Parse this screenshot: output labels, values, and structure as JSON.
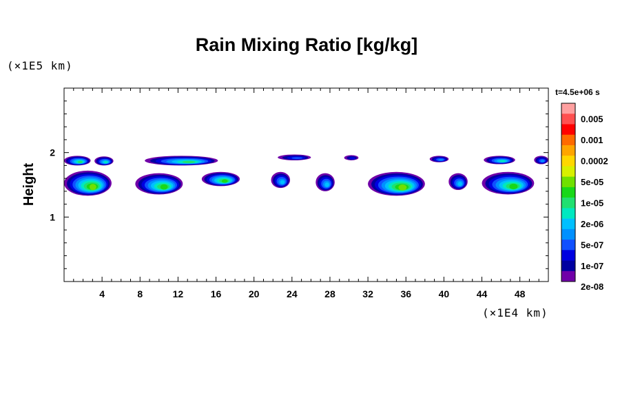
{
  "chart_data": {
    "type": "heatmap",
    "title": "Rain Mixing Ratio [kg/kg]",
    "ylabel": "Height",
    "y_unit": "(×1E5 km)",
    "x_unit": "(×1E4 km)",
    "xlim": [
      0,
      51
    ],
    "ylim": [
      0,
      3
    ],
    "x_ticks": [
      4,
      8,
      12,
      16,
      20,
      24,
      28,
      32,
      36,
      40,
      44,
      48
    ],
    "x_tick_labels": [
      "4",
      "8",
      "12",
      "16",
      "20",
      "24",
      "28",
      "32",
      "36",
      "40",
      "44",
      "48"
    ],
    "y_ticks": [
      1,
      2
    ],
    "y_tick_labels": [
      "1",
      "2"
    ],
    "time_label": "t=4.5e+06 s",
    "colorbar": {
      "labels": [
        "0.005",
        "0.001",
        "0.0002",
        "5e-05",
        "1e-05",
        "2e-06",
        "5e-07",
        "1e-07",
        "2e-08"
      ],
      "colors": [
        "#ffa0a0",
        "#ff5050",
        "#ff0000",
        "#ff6a00",
        "#ffa500",
        "#ffd700",
        "#d8f000",
        "#70e000",
        "#18d818",
        "#20e070",
        "#00e8c0",
        "#00c0ff",
        "#0090ff",
        "#1050ff",
        "#0000e0",
        "#0000a0",
        "#7000a8"
      ]
    },
    "cells": [
      {
        "x": [
          0.0,
          2.8
        ],
        "y": [
          1.8,
          1.95
        ],
        "max_level": 8
      },
      {
        "x": [
          3.2,
          5.2
        ],
        "y": [
          1.8,
          1.94
        ],
        "max_level": 7
      },
      {
        "x": [
          8.5,
          16.2
        ],
        "y": [
          1.8,
          1.95
        ],
        "max_level": 8
      },
      {
        "x": [
          22.5,
          26.0
        ],
        "y": [
          1.88,
          1.97
        ],
        "max_level": 4
      },
      {
        "x": [
          29.5,
          31.0
        ],
        "y": [
          1.88,
          1.96
        ],
        "max_level": 3
      },
      {
        "x": [
          38.5,
          40.5
        ],
        "y": [
          1.85,
          1.95
        ],
        "max_level": 5
      },
      {
        "x": [
          44.2,
          47.5
        ],
        "y": [
          1.82,
          1.95
        ],
        "max_level": 7
      },
      {
        "x": [
          49.5,
          51.0
        ],
        "y": [
          1.82,
          1.95
        ],
        "max_level": 5
      },
      {
        "x": [
          0.0,
          5.0
        ],
        "y": [
          1.33,
          1.72
        ],
        "max_level": 10
      },
      {
        "x": [
          7.5,
          12.5
        ],
        "y": [
          1.35,
          1.68
        ],
        "max_level": 9
      },
      {
        "x": [
          14.5,
          18.5
        ],
        "y": [
          1.48,
          1.7
        ],
        "max_level": 9
      },
      {
        "x": [
          21.8,
          23.8
        ],
        "y": [
          1.45,
          1.7
        ],
        "max_level": 6
      },
      {
        "x": [
          26.5,
          28.5
        ],
        "y": [
          1.4,
          1.68
        ],
        "max_level": 6
      },
      {
        "x": [
          32.0,
          38.0
        ],
        "y": [
          1.33,
          1.7
        ],
        "max_level": 10
      },
      {
        "x": [
          40.5,
          42.5
        ],
        "y": [
          1.42,
          1.68
        ],
        "max_level": 6
      },
      {
        "x": [
          44.0,
          49.5
        ],
        "y": [
          1.35,
          1.7
        ],
        "max_level": 9
      }
    ]
  }
}
